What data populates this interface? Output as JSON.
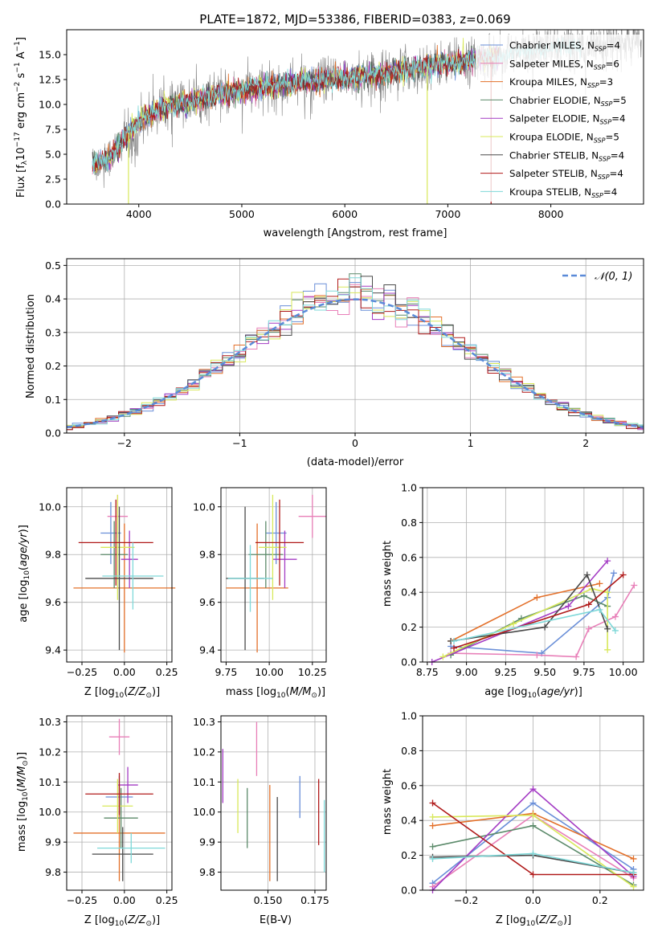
{
  "colors": {
    "Chabrier MILES": "#6a8fd8",
    "Salpeter MILES": "#e87fb8",
    "Kroupa MILES": "#e3702a",
    "Chabrier ELODIE": "#5b8a6a",
    "Salpeter ELODIE": "#a43cc4",
    "Kroupa ELODIE": "#d8e85a",
    "Chabrier STELIB": "#4a4a4a",
    "Salpeter STELIB": "#b01a1a",
    "Kroupa STELIB": "#7ed8d8",
    "spectrum": "#808080",
    "gaussian": "#5a8ad8",
    "grid": "#b0b0b0"
  },
  "chart_data": [
    {
      "id": "spectrum",
      "type": "line",
      "title": "PLATE=1872, MJD=53386, FIBERID=0383, z=0.069",
      "xlabel": "wavelength [Angstrom, rest frame]",
      "ylabel": "Flux [fλ10⁻¹⁷ erg cm⁻² s⁻¹ A⁻¹]",
      "xlim": [
        3300,
        8900
      ],
      "ylim": [
        0,
        17.5
      ],
      "xticks": [
        4000,
        5000,
        6000,
        7000,
        8000
      ],
      "yticks": [
        0.0,
        2.5,
        5.0,
        7.5,
        10.0,
        12.5,
        15.0
      ],
      "legend": [
        "Chabrier MILES, N_SSP=4",
        "Salpeter MILES, N_SSP=6",
        "Kroupa MILES, N_SSP=3",
        "Chabrier ELODIE, N_SSP=5",
        "Salpeter ELODIE, N_SSP=4",
        "Kroupa ELODIE, N_SSP=5",
        "Chabrier STELIB, N_SSP=4",
        "Salpeter STELIB, N_SSP=4",
        "Kroupa STELIB, N_SSP=4"
      ],
      "legend_position": "top-right",
      "continuum": {
        "x": [
          3550,
          3700,
          3850,
          4000,
          4200,
          4500,
          4800,
          5100,
          5400,
          5700,
          6000,
          6300,
          6600,
          6900,
          7200,
          7500,
          7800,
          8100,
          8400,
          8700
        ],
        "y": [
          4.0,
          4.5,
          6.5,
          8.3,
          9.5,
          10.3,
          11.0,
          11.6,
          12.0,
          12.3,
          12.6,
          13.0,
          13.5,
          14.0,
          14.4,
          14.9,
          15.4,
          15.8,
          16.0,
          16.2
        ]
      }
    },
    {
      "id": "residuals",
      "type": "histogram",
      "xlabel": "(data-model)/error",
      "ylabel": "Normed distribution",
      "xlim": [
        -2.5,
        2.5
      ],
      "ylim": [
        0,
        0.52
      ],
      "xticks": [
        -2,
        -1,
        0,
        1,
        2
      ],
      "yticks": [
        0.0,
        0.1,
        0.2,
        0.3,
        0.4,
        0.5
      ],
      "legend": [
        "𝒩(0, 1)"
      ],
      "legend_position": "top-right",
      "bin_width": 0.1,
      "grid": true
    },
    {
      "id": "age_vs_Z",
      "type": "errorbar",
      "xlabel": "Z [log₁₀(Z/Z⊙)]",
      "ylabel": "age  [log₁₀(age/yr)]",
      "xlim": [
        -0.34,
        0.28
      ],
      "ylim": [
        9.35,
        10.08
      ],
      "xticks": [
        -0.25,
        0.0,
        0.25
      ],
      "yticks": [
        9.4,
        9.6,
        9.8,
        10.0
      ],
      "points": [
        {
          "model": "Chabrier MILES",
          "x": -0.08,
          "xerr": 0.06,
          "y": 9.89,
          "yerr": 0.13
        },
        {
          "model": "Salpeter MILES",
          "x": -0.04,
          "xerr": 0.06,
          "y": 9.96,
          "yerr": 0.09
        },
        {
          "model": "Kroupa MILES",
          "x": 0.0,
          "xerr": 0.3,
          "y": 9.66,
          "yerr": 0.27
        },
        {
          "model": "Chabrier ELODIE",
          "x": -0.06,
          "xerr": 0.08,
          "y": 9.8,
          "yerr": 0.14
        },
        {
          "model": "Salpeter ELODIE",
          "x": 0.03,
          "xerr": 0.05,
          "y": 9.78,
          "yerr": 0.12
        },
        {
          "model": "Kroupa ELODIE",
          "x": -0.04,
          "xerr": 0.1,
          "y": 9.83,
          "yerr": 0.22
        },
        {
          "model": "Chabrier STELIB",
          "x": -0.03,
          "xerr": 0.2,
          "y": 9.7,
          "yerr": 0.3
        },
        {
          "model": "Salpeter STELIB",
          "x": -0.05,
          "xerr": 0.22,
          "y": 9.85,
          "yerr": 0.18
        },
        {
          "model": "Kroupa STELIB",
          "x": 0.05,
          "xerr": 0.18,
          "y": 9.71,
          "yerr": 0.14
        }
      ]
    },
    {
      "id": "age_vs_mass",
      "type": "errorbar",
      "xlabel": "mass [log₁₀(M/M⊙)]",
      "xlim": [
        9.72,
        10.33
      ],
      "ylim": [
        9.35,
        10.08
      ],
      "xticks": [
        9.75,
        10.0,
        10.25
      ],
      "yticks": [
        9.4,
        9.6,
        9.8,
        10.0
      ],
      "points": [
        {
          "model": "Chabrier MILES",
          "x": 10.04,
          "xerr": 0.06,
          "y": 9.89,
          "yerr": 0.13
        },
        {
          "model": "Salpeter MILES",
          "x": 10.25,
          "xerr": 0.08,
          "y": 9.96,
          "yerr": 0.09
        },
        {
          "model": "Kroupa MILES",
          "x": 9.93,
          "xerr": 0.18,
          "y": 9.66,
          "yerr": 0.27
        },
        {
          "model": "Chabrier ELODIE",
          "x": 9.98,
          "xerr": 0.1,
          "y": 9.8,
          "yerr": 0.14
        },
        {
          "model": "Salpeter ELODIE",
          "x": 10.09,
          "xerr": 0.07,
          "y": 9.78,
          "yerr": 0.12
        },
        {
          "model": "Kroupa ELODIE",
          "x": 10.02,
          "xerr": 0.08,
          "y": 9.83,
          "yerr": 0.22
        },
        {
          "model": "Chabrier STELIB",
          "x": 9.86,
          "xerr": 0.11,
          "y": 9.7,
          "yerr": 0.3
        },
        {
          "model": "Salpeter STELIB",
          "x": 10.06,
          "xerr": 0.14,
          "y": 9.85,
          "yerr": 0.18
        },
        {
          "model": "Kroupa STELIB",
          "x": 9.89,
          "xerr": 0.13,
          "y": 9.7,
          "yerr": 0.14
        }
      ]
    },
    {
      "id": "weight_vs_age",
      "type": "line",
      "xlabel": "age  [log₁₀(age/yr)]",
      "ylabel": "mass weight",
      "xlim": [
        8.72,
        10.13
      ],
      "ylim": [
        0,
        1.0
      ],
      "xticks": [
        8.75,
        9.0,
        9.25,
        9.5,
        9.75,
        10.0
      ],
      "yticks": [
        0.0,
        0.2,
        0.4,
        0.6,
        0.8,
        1.0
      ],
      "series": [
        {
          "model": "Chabrier MILES",
          "x": [
            8.9,
            9.48,
            9.9,
            9.94
          ],
          "y": [
            0.09,
            0.05,
            0.37,
            0.51
          ]
        },
        {
          "model": "Salpeter MILES",
          "x": [
            8.9,
            9.45,
            9.7,
            9.78,
            9.95,
            10.07
          ],
          "y": [
            0.05,
            0.04,
            0.03,
            0.19,
            0.26,
            0.44
          ]
        },
        {
          "model": "Kroupa MILES",
          "x": [
            8.9,
            9.45,
            9.85
          ],
          "y": [
            0.12,
            0.37,
            0.45
          ]
        },
        {
          "model": "Chabrier ELODIE",
          "x": [
            8.9,
            9.35,
            9.75,
            9.9
          ],
          "y": [
            0.04,
            0.25,
            0.38,
            0.32
          ]
        },
        {
          "model": "Salpeter ELODIE",
          "x": [
            8.78,
            9.65,
            9.9
          ],
          "y": [
            0.0,
            0.32,
            0.58
          ]
        },
        {
          "model": "Kroupa ELODIE",
          "x": [
            8.85,
            9.3,
            9.8,
            9.9,
            9.9
          ],
          "y": [
            0.03,
            0.22,
            0.42,
            0.4,
            0.07
          ]
        },
        {
          "model": "Chabrier STELIB",
          "x": [
            8.9,
            9.5,
            9.77,
            9.9
          ],
          "y": [
            0.12,
            0.2,
            0.5,
            0.19
          ]
        },
        {
          "model": "Salpeter STELIB",
          "x": [
            8.92,
            9.78,
            10.0
          ],
          "y": [
            0.08,
            0.33,
            0.5
          ]
        },
        {
          "model": "Kroupa STELIB",
          "x": [
            8.92,
            9.85,
            9.95
          ],
          "y": [
            0.12,
            0.3,
            0.18
          ]
        }
      ]
    },
    {
      "id": "mass_vs_Z",
      "type": "errorbar",
      "xlabel": "Z [log₁₀(Z/Z⊙)]",
      "ylabel": "mass [log₁₀(M/M⊙)]",
      "xlim": [
        -0.34,
        0.28
      ],
      "ylim": [
        9.74,
        10.32
      ],
      "xticks": [
        -0.25,
        0.0,
        0.25
      ],
      "yticks": [
        9.8,
        9.9,
        10.0,
        10.1,
        10.2,
        10.3
      ],
      "points": [
        {
          "model": "Chabrier MILES",
          "x": -0.03,
          "xerr": 0.08,
          "y": 10.05,
          "yerr": 0.07
        },
        {
          "model": "Salpeter MILES",
          "x": -0.03,
          "xerr": 0.06,
          "y": 10.25,
          "yerr": 0.06
        },
        {
          "model": "Kroupa MILES",
          "x": -0.03,
          "xerr": 0.27,
          "y": 9.93,
          "yerr": 0.16
        },
        {
          "model": "Chabrier ELODIE",
          "x": -0.02,
          "xerr": 0.1,
          "y": 9.98,
          "yerr": 0.1
        },
        {
          "model": "Salpeter ELODIE",
          "x": 0.02,
          "xerr": 0.06,
          "y": 10.09,
          "yerr": 0.06
        },
        {
          "model": "Kroupa ELODIE",
          "x": -0.04,
          "xerr": 0.09,
          "y": 10.02,
          "yerr": 0.09
        },
        {
          "model": "Chabrier STELIB",
          "x": -0.01,
          "xerr": 0.18,
          "y": 9.86,
          "yerr": 0.09
        },
        {
          "model": "Salpeter STELIB",
          "x": -0.03,
          "xerr": 0.2,
          "y": 10.06,
          "yerr": 0.07
        },
        {
          "model": "Kroupa STELIB",
          "x": 0.04,
          "xerr": 0.2,
          "y": 9.88,
          "yerr": 0.05
        }
      ]
    },
    {
      "id": "mass_vs_EBV",
      "type": "errorbar",
      "xlabel": "E(B-V)",
      "xlim": [
        0.125,
        0.181
      ],
      "ylim": [
        9.74,
        10.32
      ],
      "xticks": [
        0.15,
        0.175
      ],
      "yticks": [
        9.8,
        9.9,
        10.0,
        10.1,
        10.2,
        10.3
      ],
      "points": [
        {
          "model": "Chabrier MILES",
          "x": 0.167,
          "y": 10.05,
          "yerr": 0.07
        },
        {
          "model": "Salpeter MILES",
          "x": 0.144,
          "y": 10.21,
          "yerr": 0.09
        },
        {
          "model": "Kroupa MILES",
          "x": 0.151,
          "y": 9.93,
          "yerr": 0.16
        },
        {
          "model": "Chabrier ELODIE",
          "x": 0.139,
          "y": 9.98,
          "yerr": 0.1
        },
        {
          "model": "Salpeter ELODIE",
          "x": 0.126,
          "y": 10.12,
          "yerr": 0.09
        },
        {
          "model": "Kroupa ELODIE",
          "x": 0.134,
          "y": 10.02,
          "yerr": 0.09
        },
        {
          "model": "Chabrier STELIB",
          "x": 0.155,
          "y": 9.91,
          "yerr": 0.14
        },
        {
          "model": "Salpeter STELIB",
          "x": 0.177,
          "y": 10.0,
          "yerr": 0.11
        },
        {
          "model": "Kroupa STELIB",
          "x": 0.18,
          "y": 9.92,
          "yerr": 0.12
        }
      ]
    },
    {
      "id": "weight_vs_Z",
      "type": "line",
      "xlabel": "Z [log₁₀(Z/Z⊙)]",
      "ylabel": "mass weight",
      "xlim": [
        -0.33,
        0.33
      ],
      "ylim": [
        0,
        1.0
      ],
      "xticks": [
        -0.2,
        0.0,
        0.2
      ],
      "yticks": [
        0.0,
        0.2,
        0.4,
        0.6,
        0.8,
        1.0
      ],
      "series": [
        {
          "model": "Chabrier MILES",
          "x": [
            -0.3,
            0.0,
            0.3
          ],
          "y": [
            0.04,
            0.5,
            0.12
          ]
        },
        {
          "model": "Salpeter MILES",
          "x": [
            -0.3,
            0.0,
            0.3
          ],
          "y": [
            0.02,
            0.43,
            0.07
          ]
        },
        {
          "model": "Kroupa MILES",
          "x": [
            -0.3,
            0.0,
            0.3
          ],
          "y": [
            0.37,
            0.44,
            0.18
          ]
        },
        {
          "model": "Chabrier ELODIE",
          "x": [
            -0.3,
            0.0,
            0.3
          ],
          "y": [
            0.25,
            0.37,
            0.03
          ]
        },
        {
          "model": "Salpeter ELODIE",
          "x": [
            -0.3,
            0.0,
            0.3
          ],
          "y": [
            0.0,
            0.58,
            0.08
          ]
        },
        {
          "model": "Kroupa ELODIE",
          "x": [
            -0.3,
            0.0,
            0.3
          ],
          "y": [
            0.42,
            0.43,
            0.02
          ]
        },
        {
          "model": "Chabrier STELIB",
          "x": [
            -0.3,
            0.0,
            0.3
          ],
          "y": [
            0.19,
            0.2,
            0.1
          ]
        },
        {
          "model": "Salpeter STELIB",
          "x": [
            -0.3,
            0.0,
            0.3
          ],
          "y": [
            0.5,
            0.09,
            0.09
          ]
        },
        {
          "model": "Kroupa STELIB",
          "x": [
            -0.3,
            0.0,
            0.3
          ],
          "y": [
            0.18,
            0.21,
            0.1
          ]
        }
      ]
    }
  ]
}
